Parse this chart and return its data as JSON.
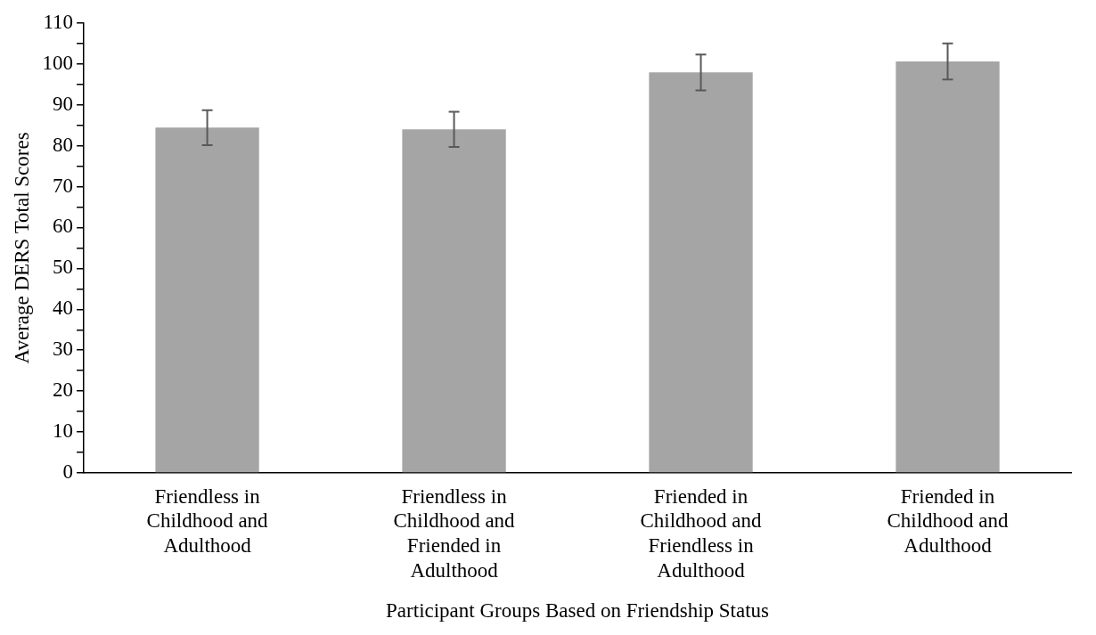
{
  "chart_data": {
    "type": "bar",
    "xlabel": "Participant Groups Based on Friendship Status",
    "ylabel": "Average DERS Total Scores",
    "categories": [
      "Friendless in Childhood and Adulthood",
      "Friendless in Childhood and Friended in Adulthood",
      "Friended in Childhood and Friendless in Adulthood",
      "Friended in Childhood and Adulthood"
    ],
    "values": [
      84.4,
      84.0,
      97.9,
      100.6
    ],
    "errors": [
      4.3,
      4.3,
      4.4,
      4.4
    ],
    "color": "#a5a5a5",
    "ylim": [
      0,
      110
    ],
    "yticks": [
      0,
      {
        "value": 5,
        "label": null
      },
      10,
      {
        "value": 15,
        "label": null
      },
      20,
      {
        "value": 25,
        "label": null
      },
      30,
      {
        "value": 35,
        "label": null
      },
      40,
      {
        "value": 45,
        "label": null
      },
      50,
      {
        "value": 55,
        "label": null
      },
      60,
      {
        "value": 65,
        "label": null
      },
      70,
      {
        "value": 75,
        "label": null
      },
      80,
      {
        "value": 85,
        "label": null
      },
      90,
      {
        "value": 95,
        "label": null
      },
      100,
      {
        "value": 105,
        "label": null
      },
      110
    ],
    "grid": false,
    "legend": false
  }
}
